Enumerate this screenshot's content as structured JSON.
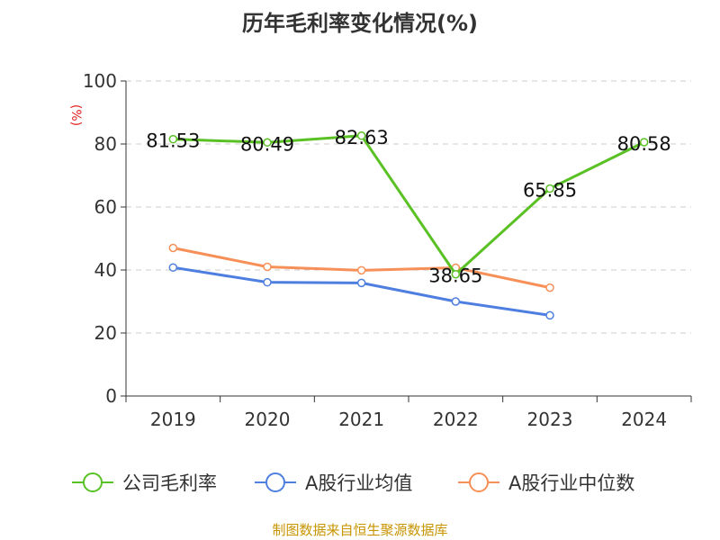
{
  "chart_data": {
    "type": "line",
    "title": "历年毛利率变化情况(%)",
    "ylabel": "(%)",
    "xlabel": "",
    "categories": [
      "2019",
      "2020",
      "2021",
      "2022",
      "2023",
      "2024"
    ],
    "ylim": [
      0,
      100
    ],
    "yticks": [
      "0",
      "20",
      "40",
      "60",
      "80",
      "100"
    ],
    "grid": true,
    "legend_position": "bottom",
    "series": [
      {
        "name": "公司毛利率",
        "color": "#5ac124",
        "values": [
          81.53,
          80.49,
          82.63,
          38.65,
          65.85,
          80.58
        ],
        "labels": [
          "81.53",
          "80.49",
          "82.63",
          "38.65",
          "65.85",
          "80.58"
        ]
      },
      {
        "name": "A股行业均值",
        "color": "#4e7fe0",
        "values": [
          40.8,
          36.1,
          35.9,
          30.0,
          25.6,
          null
        ]
      },
      {
        "name": "A股行业中位数",
        "color": "#f79058",
        "values": [
          47.0,
          41.0,
          39.9,
          40.7,
          34.4,
          null
        ]
      }
    ]
  },
  "source": "制图数据来自恒生聚源数据库"
}
